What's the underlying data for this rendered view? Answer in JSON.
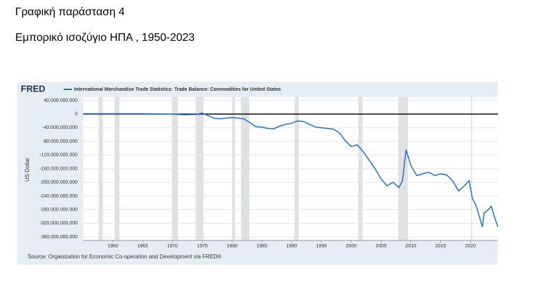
{
  "heading": "Γραφική παράσταση 4",
  "subheading": "Εμπορικό ισοζύγιο ΗΠΑ , 1950-2023",
  "chart_data": {
    "type": "line",
    "logo": "FRED",
    "ylabel": "US Dollar",
    "source": "Source: Organization for Economic Co-operation and Development via FRED®",
    "xlim": [
      1955,
      2024.6
    ],
    "xticks": [
      1960,
      1965,
      1970,
      1975,
      1980,
      1985,
      1990,
      1995,
      2000,
      2005,
      2010,
      2015,
      2020
    ],
    "ylim": [
      -370000000000,
      50000000000
    ],
    "yticks": [
      {
        "value": 40000000000,
        "label": "40.000.000.000"
      },
      0,
      {
        "value": -40000000000,
        "label": "-40.000.000.000"
      },
      {
        "value": -80000000000,
        "label": "-80.000.000.000"
      },
      {
        "value": -120000000000,
        "label": "-120.000.000.000"
      },
      {
        "value": -160000000000,
        "label": "-160.000.000.000"
      },
      {
        "value": -200000000000,
        "label": "-200.000.000.000"
      },
      {
        "value": -240000000000,
        "label": "-240.000.000.000"
      },
      {
        "value": -280000000000,
        "label": "-280.000.000.000"
      },
      {
        "value": -320000000000,
        "label": "-320.000.000.000"
      },
      {
        "value": -360000000000,
        "label": "-360.000.000.000"
      }
    ],
    "grid": true,
    "recessions": [
      [
        1957.6,
        1958.3
      ],
      [
        1960.3,
        1961.1
      ],
      [
        1969.9,
        1970.9
      ],
      [
        1973.9,
        1975.2
      ],
      [
        1980.0,
        1980.5
      ],
      [
        1981.5,
        1982.9
      ],
      [
        1990.5,
        1991.2
      ],
      [
        2001.2,
        2001.9
      ],
      [
        2007.9,
        2009.5
      ],
      [
        2020.1,
        2020.3
      ]
    ],
    "series": [
      {
        "name": "International Merchandise Trade Statistics: Trade Balance: Commodities for United States",
        "color": "#1a73c9",
        "x": [
          1955,
          1960,
          1965,
          1970,
          1972,
          1974,
          1975,
          1976,
          1977,
          1978,
          1979,
          1980,
          1981,
          1982,
          1983,
          1984,
          1985,
          1986,
          1987,
          1988,
          1989,
          1990,
          1991,
          1992,
          1993,
          1994,
          1995,
          1996,
          1997,
          1998,
          1999,
          2000,
          2001,
          2002,
          2003,
          2004,
          2005,
          2006,
          2007,
          2008,
          2008.6,
          2009.2,
          2010,
          2011,
          2012,
          2013,
          2014,
          2015,
          2016,
          2017,
          2018,
          2019,
          2019.8,
          2020.3,
          2021,
          2022,
          2022.3,
          2023,
          2023.5,
          2024,
          2024.6
        ],
        "values": [
          1000000000,
          1000000000,
          1000000000,
          0,
          -2000000000,
          -1000000000,
          3000000000,
          -5000000000,
          -12000000000,
          -14000000000,
          -12000000000,
          -10000000000,
          -12000000000,
          -14000000000,
          -25000000000,
          -37000000000,
          -38000000000,
          -42000000000,
          -43000000000,
          -35000000000,
          -30000000000,
          -27000000000,
          -20000000000,
          -22000000000,
          -30000000000,
          -38000000000,
          -40000000000,
          -42000000000,
          -44000000000,
          -55000000000,
          -78000000000,
          -95000000000,
          -90000000000,
          -110000000000,
          -135000000000,
          -160000000000,
          -190000000000,
          -210000000000,
          -200000000000,
          -215000000000,
          -195000000000,
          -105000000000,
          -150000000000,
          -180000000000,
          -175000000000,
          -170000000000,
          -180000000000,
          -175000000000,
          -178000000000,
          -195000000000,
          -225000000000,
          -210000000000,
          -195000000000,
          -245000000000,
          -270000000000,
          -330000000000,
          -290000000000,
          -280000000000,
          -270000000000,
          -300000000000,
          -330000000000
        ]
      }
    ]
  }
}
